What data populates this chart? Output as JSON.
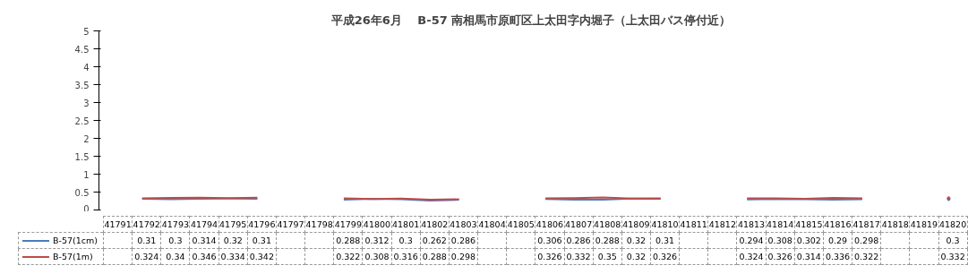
{
  "chart_data": {
    "type": "line",
    "title": "平成26年6月　 B-57 南相馬市原町区上太田字内堀子（上太田バス停付近）",
    "categories": [
      "41791",
      "41792",
      "41793",
      "41794",
      "41795",
      "41796",
      "41797",
      "41798",
      "41799",
      "41800",
      "41801",
      "41802",
      "41803",
      "41804",
      "41805",
      "41806",
      "41807",
      "41808",
      "41809",
      "41810",
      "41811",
      "41812",
      "41813",
      "41814",
      "41815",
      "41816",
      "41817",
      "41818",
      "41819",
      "41820"
    ],
    "series": [
      {
        "name": "B-57(1cm)",
        "color": "#4a7ebb",
        "values": [
          null,
          0.31,
          0.3,
          0.314,
          0.32,
          0.31,
          null,
          null,
          0.288,
          0.312,
          0.3,
          0.262,
          0.286,
          null,
          null,
          0.306,
          0.286,
          0.288,
          0.32,
          0.31,
          null,
          null,
          0.294,
          0.308,
          0.302,
          0.29,
          0.298,
          null,
          null,
          0.3
        ]
      },
      {
        "name": "B-57(1m)",
        "color": "#be4b48",
        "values": [
          null,
          0.324,
          0.34,
          0.346,
          0.334,
          0.342,
          null,
          null,
          0.322,
          0.308,
          0.316,
          0.288,
          0.298,
          null,
          null,
          0.326,
          0.332,
          0.35,
          0.32,
          0.326,
          null,
          null,
          0.324,
          0.326,
          0.314,
          0.336,
          0.322,
          null,
          null,
          0.332
        ]
      }
    ],
    "ylim": [
      0,
      5
    ],
    "yticks": [
      0,
      0.5,
      1,
      1.5,
      2,
      2.5,
      3,
      3.5,
      4,
      4.5,
      5
    ],
    "grid": false,
    "legend": "bottom",
    "data_labels": true,
    "marker": "none",
    "line_style": "solid"
  }
}
